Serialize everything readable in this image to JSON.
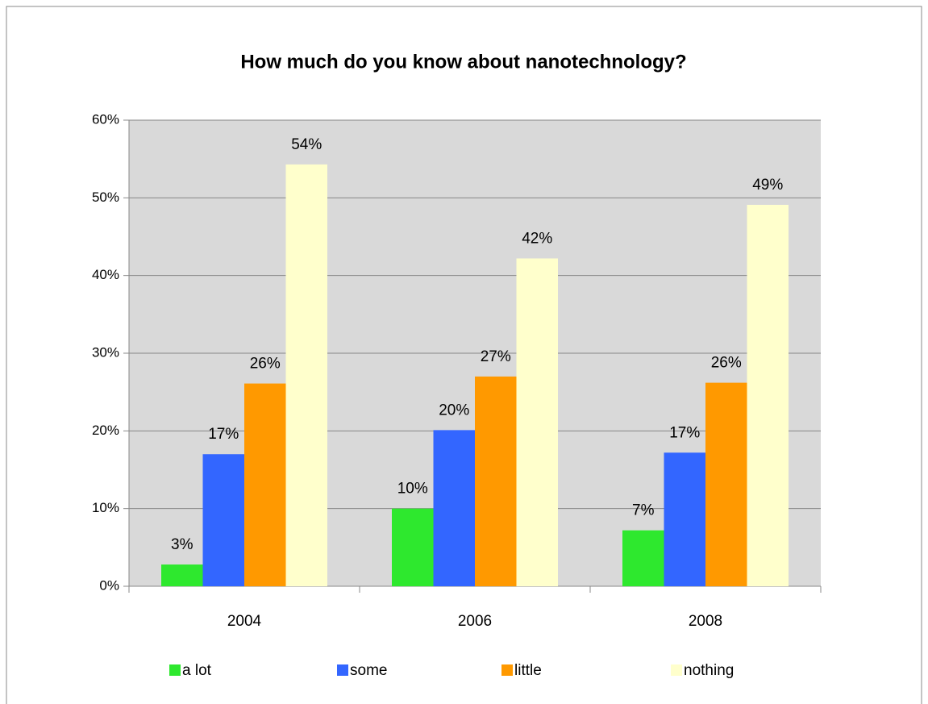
{
  "chart_data": {
    "type": "bar",
    "title": "How much do you know about nanotechnology?",
    "categories": [
      "2004",
      "2006",
      "2008"
    ],
    "series": [
      {
        "name": "a lot",
        "color": "#2ee82e",
        "values": [
          2.8,
          10,
          7.2
        ],
        "value_labels": [
          "3%",
          "10%",
          "7%"
        ]
      },
      {
        "name": "some",
        "color": "#3366ff",
        "values": [
          17,
          20.1,
          17.2
        ],
        "value_labels": [
          "17%",
          "20%",
          "17%"
        ]
      },
      {
        "name": "little",
        "color": "#ff9900",
        "values": [
          26.1,
          27,
          26.2
        ],
        "value_labels": [
          "26%",
          "27%",
          "26%"
        ]
      },
      {
        "name": "nothing",
        "color": "#ffffcc",
        "values": [
          54.3,
          42.2,
          49.1
        ],
        "value_labels": [
          "54%",
          "42%",
          "49%"
        ]
      }
    ],
    "ylim": [
      0,
      60
    ],
    "yticks": [
      {
        "value": 0,
        "label": "0%"
      },
      {
        "value": 10,
        "label": "10%"
      },
      {
        "value": 20,
        "label": "20%"
      },
      {
        "value": 30,
        "label": "30%"
      },
      {
        "value": 40,
        "label": "40%"
      },
      {
        "value": 50,
        "label": "50%"
      },
      {
        "value": 60,
        "label": "60%"
      }
    ],
    "grid": true,
    "legend": "bottom"
  }
}
